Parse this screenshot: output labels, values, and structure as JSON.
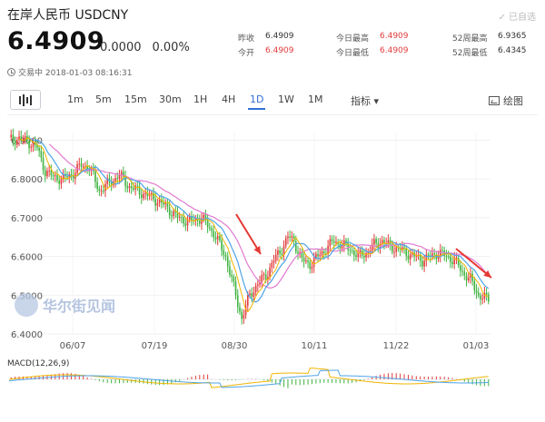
{
  "header": {
    "title": "在岸人民币  USDCNY",
    "selected_label": "已自选",
    "price": "6.4909",
    "change": "0.0000",
    "change_pct": "0.00%",
    "status": "交易中 2018-01-03 08:16:31"
  },
  "stats": {
    "prev_close_label": "昨收",
    "prev_close": "6.4909",
    "open_label": "今开",
    "open": "6.4909",
    "day_high_label": "今日最高",
    "day_high": "6.4909",
    "day_low_label": "今日最低",
    "day_low": "6.4909",
    "wk52_high_label": "52周最高",
    "wk52_high": "6.9365",
    "wk52_low_label": "52周最低",
    "wk52_low": "6.4345"
  },
  "toolbar": {
    "timeframes": [
      "1m",
      "5m",
      "15m",
      "30m",
      "1H",
      "4H",
      "1D",
      "1W",
      "1M"
    ],
    "active": "1D",
    "indicators_label": "指标",
    "draw_label": "绘图"
  },
  "watermark": "华尔街见闻",
  "macd_label": "MACD(12,26,9)",
  "colors": {
    "up": "#e23c3c",
    "down": "#41b441",
    "active": "#2f6fd6",
    "arrow": "#e53935",
    "ma_pink": "#e07ad0",
    "ma_blue": "#4ea3e8",
    "ma_yellow": "#f0b400"
  },
  "chart_data": {
    "type": "candlestick",
    "y_ticks": [
      "6.9000",
      "6.8000",
      "6.7000",
      "6.6000",
      "6.5000",
      "6.4000"
    ],
    "x_ticks": [
      "06/07",
      "07/19",
      "08/30",
      "10/11",
      "11/22",
      "01/03"
    ],
    "ylim": [
      6.4,
      6.92
    ],
    "close_series": [
      [
        0,
        6.9
      ],
      [
        5,
        6.905
      ],
      [
        10,
        6.895
      ],
      [
        14,
        6.88
      ],
      [
        18,
        6.82
      ],
      [
        22,
        6.805
      ],
      [
        27,
        6.8
      ],
      [
        32,
        6.815
      ],
      [
        36,
        6.835
      ],
      [
        40,
        6.83
      ],
      [
        45,
        6.77
      ],
      [
        50,
        6.79
      ],
      [
        55,
        6.81
      ],
      [
        60,
        6.78
      ],
      [
        66,
        6.765
      ],
      [
        72,
        6.75
      ],
      [
        78,
        6.73
      ],
      [
        84,
        6.7
      ],
      [
        90,
        6.69
      ],
      [
        96,
        6.7
      ],
      [
        102,
        6.66
      ],
      [
        108,
        6.6
      ],
      [
        112,
        6.52
      ],
      [
        116,
        6.44
      ],
      [
        120,
        6.5
      ],
      [
        124,
        6.53
      ],
      [
        128,
        6.55
      ],
      [
        132,
        6.59
      ],
      [
        136,
        6.62
      ],
      [
        139,
        6.65
      ],
      [
        142,
        6.64
      ],
      [
        146,
        6.59
      ],
      [
        150,
        6.58
      ],
      [
        154,
        6.6
      ],
      [
        158,
        6.62
      ],
      [
        162,
        6.64
      ],
      [
        166,
        6.63
      ],
      [
        170,
        6.62
      ],
      [
        174,
        6.6
      ],
      [
        178,
        6.61
      ],
      [
        182,
        6.63
      ],
      [
        186,
        6.64
      ],
      [
        190,
        6.625
      ],
      [
        194,
        6.62
      ],
      [
        198,
        6.61
      ],
      [
        202,
        6.6
      ],
      [
        206,
        6.59
      ],
      [
        210,
        6.6
      ],
      [
        214,
        6.61
      ],
      [
        218,
        6.6
      ],
      [
        222,
        6.59
      ],
      [
        226,
        6.56
      ],
      [
        230,
        6.54
      ],
      [
        234,
        6.5
      ],
      [
        238,
        6.49
      ]
    ]
  }
}
